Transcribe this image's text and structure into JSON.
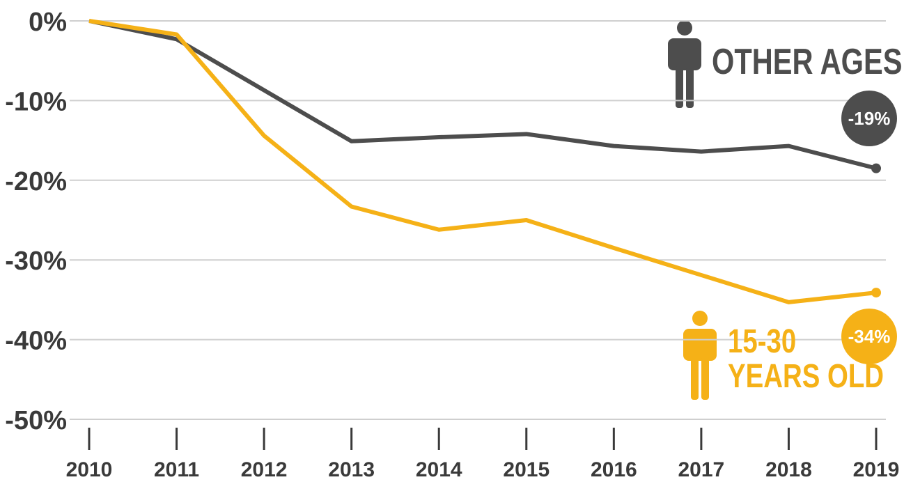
{
  "chart_data": {
    "type": "line",
    "categories": [
      "2010",
      "2011",
      "2012",
      "2013",
      "2014",
      "2015",
      "2016",
      "2017",
      "2018",
      "2019"
    ],
    "series": [
      {
        "name": "OTHER AGES",
        "color": "#4d4d4d",
        "label": "-19%",
        "values": [
          0,
          -2.3,
          -8.7,
          -15.1,
          -14.6,
          -14.2,
          -15.7,
          -16.4,
          -15.7,
          -18.5
        ]
      },
      {
        "name": "15-30 YEARS OLD",
        "color": "#f5b117",
        "label": "-34%",
        "values": [
          0,
          -1.7,
          -14.4,
          -23.3,
          -26.2,
          -25,
          -28.5,
          -31.9,
          -35.3,
          -34.1
        ]
      }
    ],
    "ylim": [
      -50,
      0
    ],
    "yticks": [
      {
        "value": 0,
        "label": "0%"
      },
      {
        "value": -10,
        "label": "-10%"
      },
      {
        "value": -20,
        "label": "-20%"
      },
      {
        "value": -30,
        "label": "-30%"
      },
      {
        "value": -40,
        "label": "-40%"
      },
      {
        "value": -50,
        "label": "-50%"
      }
    ],
    "grid": true
  }
}
